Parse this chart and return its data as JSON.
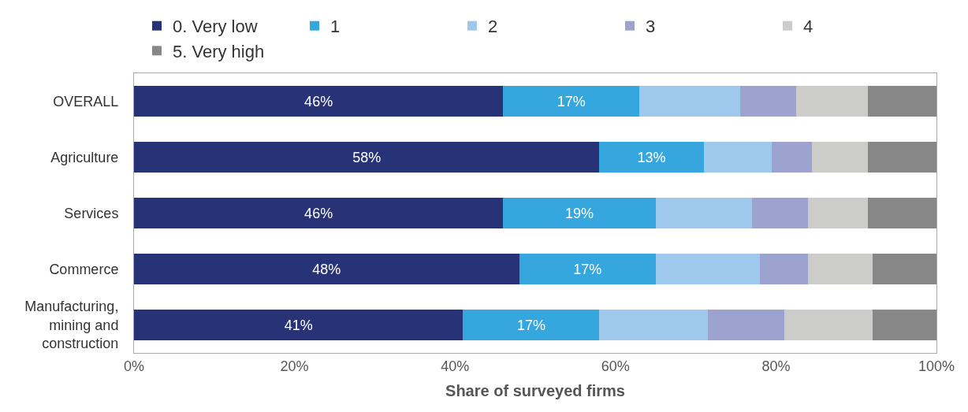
{
  "chart_data": {
    "type": "bar",
    "orientation": "horizontal",
    "stacked": true,
    "xlabel": "Share of surveyed firms",
    "categories": [
      "OVERALL",
      "Agriculture",
      "Services",
      "Commerce",
      "Manufacturing,\nmining and\nconstruction"
    ],
    "series": [
      {
        "name": "0. Very low",
        "color": "#283377",
        "values": [
          46,
          58,
          46,
          48,
          41
        ],
        "value_labels": [
          "46%",
          "58%",
          "46%",
          "48%",
          "41%"
        ]
      },
      {
        "name": "1",
        "color": "#35a6de",
        "values": [
          17,
          13,
          19,
          17,
          17
        ],
        "value_labels": [
          "17%",
          "13%",
          "19%",
          "17%",
          "17%"
        ]
      },
      {
        "name": "2",
        "color": "#9fc9ec",
        "values": [
          12.5,
          8.5,
          12,
          13,
          13.5
        ]
      },
      {
        "name": "3",
        "color": "#9ca3cf",
        "values": [
          7,
          5,
          7,
          6,
          9.5
        ]
      },
      {
        "name": "4",
        "color": "#cccccb",
        "values": [
          9,
          7,
          7.5,
          8,
          11
        ]
      },
      {
        "name": "5. Very high",
        "color": "#878787",
        "values": [
          8.5,
          8.5,
          8.5,
          8,
          8
        ]
      }
    ],
    "xlim": [
      0,
      100
    ],
    "xticks": [
      {
        "value": 0,
        "label": "0%"
      },
      {
        "value": 20,
        "label": "20%"
      },
      {
        "value": 40,
        "label": "40%"
      },
      {
        "value": 60,
        "label": "60%"
      },
      {
        "value": 80,
        "label": "80%"
      },
      {
        "value": 100,
        "label": "100%"
      }
    ],
    "legend": "top"
  }
}
